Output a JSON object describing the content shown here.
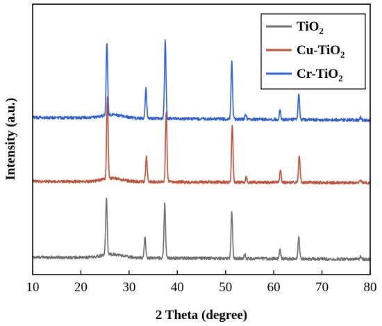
{
  "chart_data": {
    "type": "line",
    "title": "",
    "xlabel": "2 Theta (degree)",
    "ylabel": "Intensity (a.u.)",
    "xlim": [
      10,
      80
    ],
    "x_ticks": [
      10,
      20,
      30,
      40,
      50,
      60,
      70,
      80
    ],
    "y_ticks_shown": false,
    "grid": false,
    "legend_position": "top-right",
    "series": [
      {
        "name": "TiO2",
        "name_main": "TiO",
        "name_sub": "2",
        "color": "#6e6e6e",
        "baseline": 8,
        "baseline_end": 5,
        "peaks": [
          {
            "x": 25.3,
            "h": 82
          },
          {
            "x": 33.3,
            "h": 30
          },
          {
            "x": 37.4,
            "h": 80
          },
          {
            "x": 51.3,
            "h": 68
          },
          {
            "x": 54.0,
            "h": 6
          },
          {
            "x": 61.3,
            "h": 12
          },
          {
            "x": 65.2,
            "h": 33
          },
          {
            "x": 78.0,
            "h": 4
          }
        ]
      },
      {
        "name": "Cu-TiO2",
        "name_main": "Cu-TiO",
        "name_sub": "2",
        "color": "#c0503a",
        "baseline": 117,
        "baseline_end": 115,
        "peaks": [
          {
            "x": 25.5,
            "h": 118
          },
          {
            "x": 33.6,
            "h": 36
          },
          {
            "x": 37.7,
            "h": 100
          },
          {
            "x": 51.4,
            "h": 83
          },
          {
            "x": 54.3,
            "h": 7
          },
          {
            "x": 61.4,
            "h": 18
          },
          {
            "x": 65.3,
            "h": 40
          },
          {
            "x": 78.0,
            "h": 4
          }
        ]
      },
      {
        "name": "Cr-TiO2",
        "name_main": "Cr-TiO",
        "name_sub": "2",
        "color": "#2f5fd6",
        "baseline": 209,
        "baseline_end": 205,
        "peaks": [
          {
            "x": 25.4,
            "h": 105
          },
          {
            "x": 33.5,
            "h": 43
          },
          {
            "x": 37.5,
            "h": 114
          },
          {
            "x": 51.3,
            "h": 83
          },
          {
            "x": 54.2,
            "h": 7
          },
          {
            "x": 61.3,
            "h": 14
          },
          {
            "x": 65.2,
            "h": 38
          },
          {
            "x": 78.0,
            "h": 4
          }
        ]
      }
    ]
  }
}
